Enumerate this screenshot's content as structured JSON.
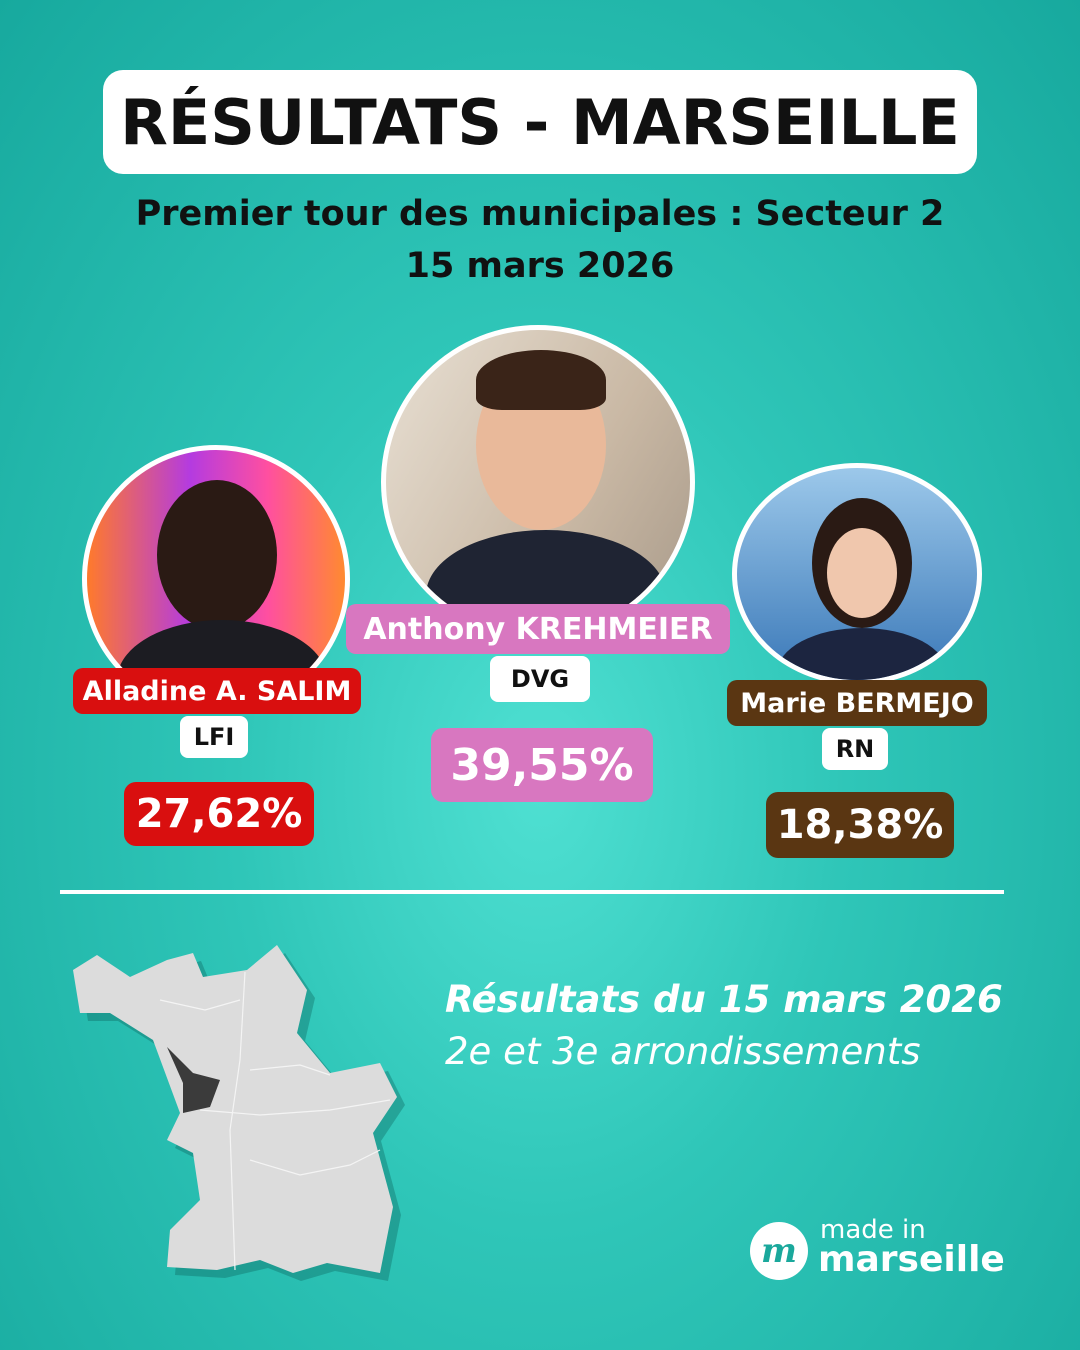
{
  "header": {
    "title": "RÉSULTATS - MARSEILLE",
    "subtitle": "Premier tour des municipales : Secteur 2",
    "date": "15 mars 2026"
  },
  "candidates": [
    {
      "name": "Alladine A. SALIM",
      "party": "LFI",
      "percent": "27,62%",
      "color": "#d90f0f"
    },
    {
      "name": "Anthony KREHMEIER",
      "party": "DVG",
      "percent": "39,55%",
      "color": "#d877c0"
    },
    {
      "name": "Marie BERMEJO",
      "party": "RN",
      "percent": "18,38%",
      "color": "#5a3612"
    }
  ],
  "map": {
    "line1": "Résultats du 15 mars 2026",
    "line2": "2e et 3e arrondissements",
    "highlight_color": "#3b3b3b",
    "base_color": "#dcdcdc"
  },
  "logo": {
    "line1": "made in",
    "line2": "marseille"
  }
}
